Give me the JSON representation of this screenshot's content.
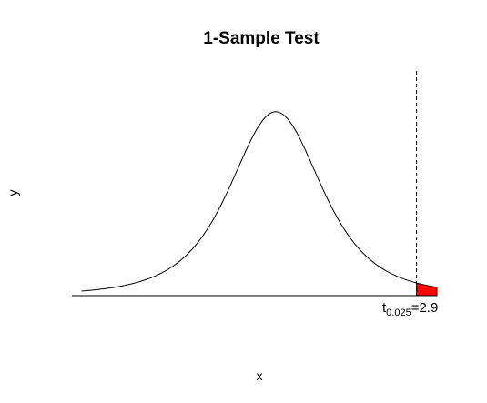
{
  "chart_data": {
    "type": "line",
    "title": "1-Sample Test",
    "xlabel": "x",
    "ylabel": "y",
    "distribution": "t",
    "series": [
      {
        "x": [
          -4.0,
          -3.5,
          -3.0,
          -2.5,
          -2.0,
          -1.5,
          -1.0,
          -0.5,
          0.0,
          0.5,
          1.0,
          1.5,
          2.0,
          2.5,
          2.9
        ],
        "y": [
          0.035,
          0.046,
          0.062,
          0.087,
          0.125,
          0.181,
          0.257,
          0.334,
          0.372,
          0.334,
          0.257,
          0.181,
          0.125,
          0.087,
          0.064
        ]
      }
    ],
    "critical_value": {
      "label": "t",
      "subscript": "0.025",
      "equals": "=",
      "value": "2.9",
      "x": 2.9
    },
    "rejection_region": {
      "from_x": 2.9,
      "to_x": 3.32,
      "color": "#ff0000"
    },
    "xlim": [
      -4.2,
      3.32
    ],
    "ylim": [
      0,
      0.4
    ],
    "grid": false,
    "axes_visible": false
  }
}
